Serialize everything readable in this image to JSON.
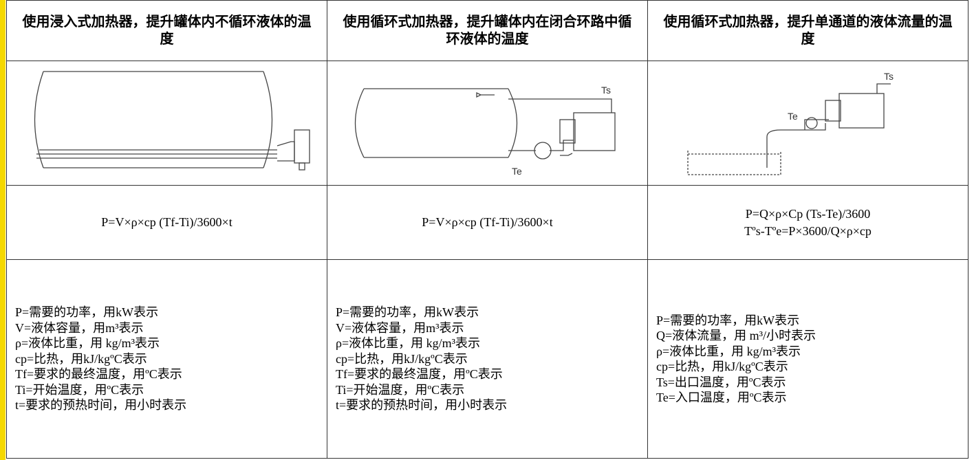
{
  "table": {
    "headers": [
      "使用浸入式加热器，提升罐体内不循环液体的温度",
      "使用循环式加热器，提升罐体内在闭合环路中循环液体的温度",
      "使用循环式加热器，提升单通道的液体流量的温度"
    ],
    "diagrams": {
      "circulating": {
        "outlet": "Ts",
        "inlet": "Te"
      },
      "flow": {
        "outlet": "Ts",
        "inlet": "Te"
      }
    },
    "formulas": [
      [
        "P=V×ρ×cp (Tf-Ti)/3600×t"
      ],
      [
        "P=V×ρ×cp (Tf-Ti)/3600×t"
      ],
      [
        "P=Q×ρ×Cp (Ts-Te)/3600",
        "Tºs-Tºe=P×3600/Q×ρ×cp"
      ]
    ],
    "definitions": [
      [
        "P=需要的功率，用kW表示",
        "V=液体容量，用m³表示",
        "ρ=液体比重，用 kg/m³表示",
        "cp=比热，用kJ/kgºC表示",
        "Tf=要求的最终温度，用ºC表示",
        "Ti=开始温度，用ºC表示",
        "t=要求的预热时间，用小时表示"
      ],
      [
        "P=需要的功率，用kW表示",
        "V=液体容量，用m³表示",
        "ρ=液体比重，用 kg/m³表示",
        "cp=比热，用kJ/kgºC表示",
        "Tf=要求的最终温度，用ºC表示",
        "Ti=开始温度，用ºC表示",
        "t=要求的预热时间，用小时表示"
      ],
      [
        "P=需要的功率，用kW表示",
        "Q=液体流量，用 m³/小时表示",
        "ρ=液体比重，用 kg/m³表示",
        "cp=比热，用kJ/kgºC表示",
        "Ts=出口温度，用ºC表示",
        "Te=入口温度，用ºC表示"
      ]
    ]
  }
}
